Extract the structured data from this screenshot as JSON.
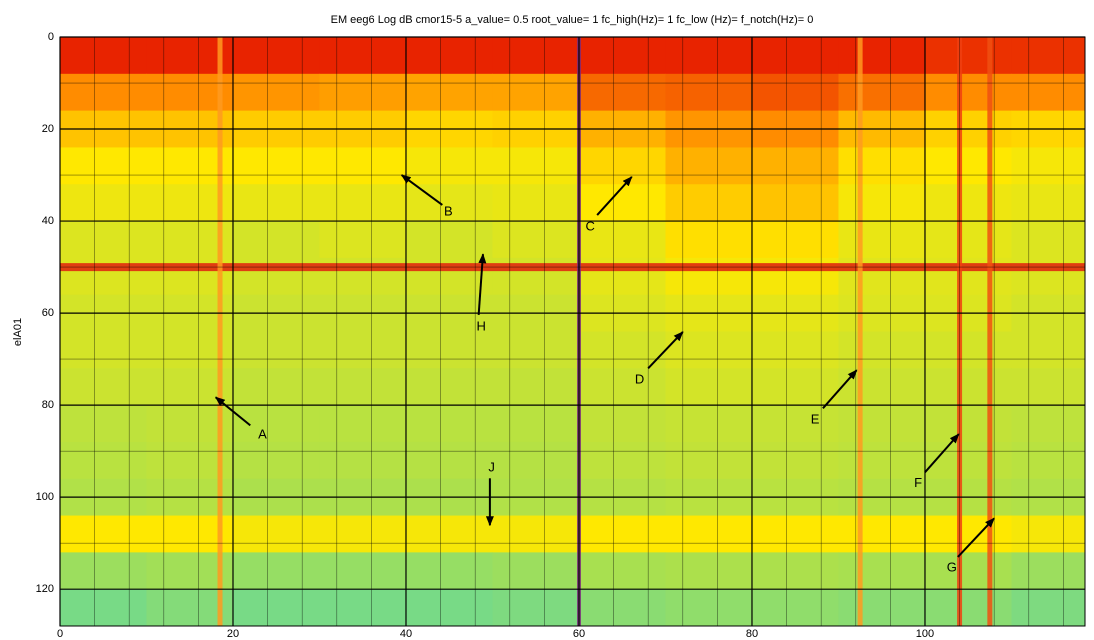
{
  "chart_data": {
    "type": "heatmap",
    "title": "EM eeg6    Log dB    cmor15-5 a_value= 0.5 root_value= 1    fc_high(Hz)= 1   fc_low (Hz)=    f_notch(Hz)= 0",
    "ylabel": "elA01",
    "xlim": [
      0,
      118.5
    ],
    "ylim": [
      0,
      128
    ],
    "y_inverted": true,
    "xticks": [
      0,
      20,
      40,
      60,
      80,
      100
    ],
    "yticks": [
      0,
      20,
      40,
      60,
      80,
      100,
      120
    ],
    "xminorticks": [
      4,
      8,
      12,
      16,
      24,
      28,
      32,
      36,
      44,
      48,
      52,
      56,
      64,
      68,
      72,
      76,
      84,
      88,
      92,
      96,
      104,
      108,
      112,
      116
    ],
    "yminorticks": [
      10,
      30,
      50,
      70,
      90,
      110
    ],
    "grid": true,
    "zlim": [
      0.2,
      1
    ],
    "colormap": [
      "#2fd0d8",
      "#a8e050",
      "#ffe800",
      "#ff8c00",
      "#e00000"
    ],
    "xbins": [
      0,
      10,
      20,
      30,
      40,
      50,
      60,
      70,
      80,
      90,
      100,
      110,
      118.5
    ],
    "ybins": [
      0,
      8,
      16,
      24,
      32,
      40,
      48,
      56,
      64,
      72,
      80,
      88,
      96,
      104,
      112,
      120,
      128
    ],
    "z": [
      [
        0.95,
        0.95,
        0.95,
        0.95,
        0.95,
        0.95,
        0.95,
        0.95,
        0.95,
        0.95,
        0.93,
        0.93
      ],
      [
        0.8,
        0.8,
        0.78,
        0.76,
        0.75,
        0.75,
        0.85,
        0.86,
        0.88,
        0.84,
        0.8,
        0.8
      ],
      [
        0.68,
        0.68,
        0.66,
        0.66,
        0.64,
        0.65,
        0.72,
        0.78,
        0.8,
        0.7,
        0.65,
        0.64
      ],
      [
        0.6,
        0.6,
        0.6,
        0.6,
        0.58,
        0.58,
        0.64,
        0.72,
        0.72,
        0.62,
        0.6,
        0.58
      ],
      [
        0.56,
        0.56,
        0.55,
        0.55,
        0.54,
        0.55,
        0.6,
        0.66,
        0.68,
        0.58,
        0.56,
        0.55
      ],
      [
        0.52,
        0.52,
        0.5,
        0.52,
        0.5,
        0.52,
        0.55,
        0.62,
        0.62,
        0.55,
        0.54,
        0.52
      ],
      [
        0.52,
        0.52,
        0.5,
        0.5,
        0.5,
        0.5,
        0.54,
        0.58,
        0.58,
        0.53,
        0.53,
        0.52
      ],
      [
        0.5,
        0.5,
        0.48,
        0.48,
        0.48,
        0.48,
        0.52,
        0.54,
        0.54,
        0.52,
        0.52,
        0.5
      ],
      [
        0.5,
        0.5,
        0.48,
        0.48,
        0.48,
        0.48,
        0.5,
        0.52,
        0.52,
        0.5,
        0.5,
        0.5
      ],
      [
        0.48,
        0.48,
        0.46,
        0.46,
        0.46,
        0.46,
        0.48,
        0.5,
        0.5,
        0.48,
        0.48,
        0.48
      ],
      [
        0.45,
        0.46,
        0.44,
        0.44,
        0.44,
        0.44,
        0.46,
        0.47,
        0.47,
        0.46,
        0.46,
        0.45
      ],
      [
        0.44,
        0.45,
        0.43,
        0.43,
        0.43,
        0.43,
        0.45,
        0.46,
        0.46,
        0.45,
        0.45,
        0.44
      ],
      [
        0.42,
        0.43,
        0.41,
        0.41,
        0.41,
        0.42,
        0.43,
        0.44,
        0.44,
        0.43,
        0.43,
        0.42
      ],
      [
        0.6,
        0.6,
        0.58,
        0.58,
        0.58,
        0.58,
        0.6,
        0.6,
        0.6,
        0.6,
        0.6,
        0.58
      ],
      [
        0.38,
        0.39,
        0.37,
        0.37,
        0.37,
        0.38,
        0.4,
        0.41,
        0.41,
        0.4,
        0.4,
        0.38
      ],
      [
        0.32,
        0.34,
        0.32,
        0.32,
        0.32,
        0.33,
        0.35,
        0.36,
        0.36,
        0.35,
        0.35,
        0.33
      ]
    ],
    "lines": [
      {
        "axis": "y",
        "value": 50,
        "color": "#e02a10"
      },
      {
        "axis": "x",
        "value": 18.5,
        "color": "#ff9a20"
      },
      {
        "axis": "x",
        "value": 92.5,
        "color": "#ff9a20"
      },
      {
        "axis": "x",
        "value": 104,
        "color": "#f04010"
      },
      {
        "axis": "x",
        "value": 107.5,
        "color": "#f05010"
      },
      {
        "axis": "x",
        "value": 60,
        "color": "#7a2a7a"
      }
    ],
    "annotations": [
      {
        "text": "A",
        "x": 23.4,
        "y": 86.5,
        "from": [
          22,
          84.4
        ],
        "to": [
          18,
          78.3
        ]
      },
      {
        "text": "B",
        "x": 44.9,
        "y": 38,
        "from": [
          44.2,
          36.5
        ],
        "to": [
          39.5,
          30
        ]
      },
      {
        "text": "C",
        "x": 61.3,
        "y": 41.3,
        "from": [
          62.1,
          38.7
        ],
        "to": [
          66.1,
          30.4
        ]
      },
      {
        "text": "D",
        "x": 67,
        "y": 74.6,
        "from": [
          68,
          72
        ],
        "to": [
          72,
          64.1
        ]
      },
      {
        "text": "E",
        "x": 87.3,
        "y": 83.3,
        "from": [
          88.2,
          80.7
        ],
        "to": [
          92.1,
          72.4
        ]
      },
      {
        "text": "F",
        "x": 99.2,
        "y": 97,
        "from": [
          100,
          94.6
        ],
        "to": [
          103.9,
          86.3
        ]
      },
      {
        "text": "G",
        "x": 103.1,
        "y": 115.4,
        "from": [
          103.8,
          113
        ],
        "to": [
          108,
          104.6
        ]
      },
      {
        "text": "H",
        "x": 48.7,
        "y": 63,
        "from": [
          48.4,
          60.4
        ],
        "to": [
          48.9,
          47.2
        ]
      },
      {
        "text": "J",
        "x": 49.9,
        "y": 93.7,
        "from": [
          49.7,
          95.9
        ],
        "to": [
          49.7,
          106.1
        ]
      }
    ]
  }
}
